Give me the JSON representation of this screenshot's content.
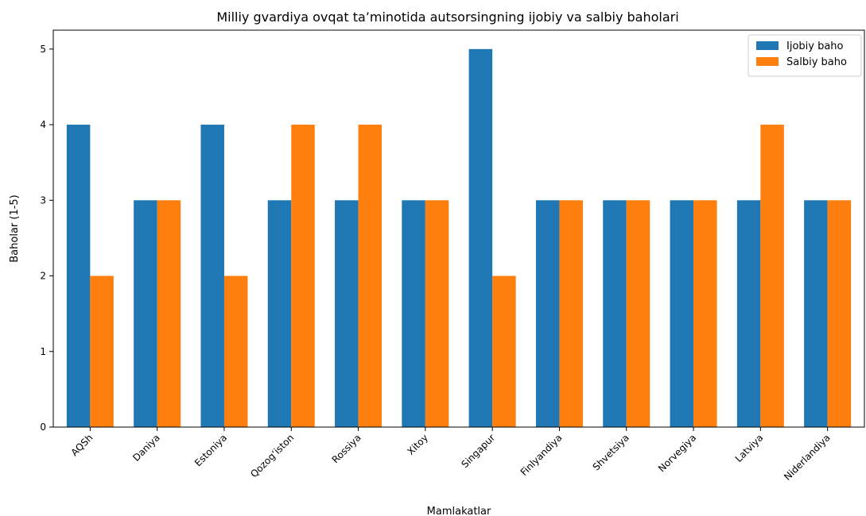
{
  "chart_data": {
    "type": "bar",
    "title": "Milliy gvardiya ovqat ta’minotida autsorsingning ijobiy va salbiy baholari",
    "xlabel": "Mamlakatlar",
    "ylabel": "Baholar (1-5)",
    "ylim": [
      0,
      5.25
    ],
    "yticks": [
      "0",
      "1",
      "2",
      "3",
      "4",
      "5"
    ],
    "grid": false,
    "legend_position": "top-right",
    "categories": [
      "AQSh",
      "Daniya",
      "Estoniya",
      "Qozog‘iston",
      "Rossiya",
      "Xitoy",
      "Singapur",
      "Finlyandiya",
      "Shvetsiya",
      "Norvegiya",
      "Latviya",
      "Niderlandiya"
    ],
    "series": [
      {
        "name": "Ijobiy baho",
        "color": "#1f77b4",
        "values": [
          4,
          3,
          4,
          3,
          3,
          3,
          5,
          3,
          3,
          3,
          3,
          3
        ]
      },
      {
        "name": "Salbiy baho",
        "color": "#ff7f0e",
        "values": [
          2,
          3,
          2,
          4,
          4,
          3,
          2,
          3,
          3,
          3,
          4,
          3
        ]
      }
    ]
  }
}
